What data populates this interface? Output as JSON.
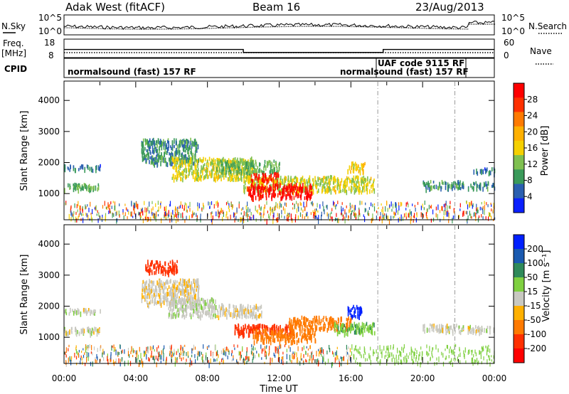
{
  "header": {
    "station": "Adak West (fitACF)",
    "beam": "Beam 16",
    "date": "23/Aug/2013"
  },
  "left_labels": {
    "nsky": "N.Sky",
    "freq": "Freq.",
    "freq_unit": "[MHz]",
    "cpid": "CPID"
  },
  "right_labels": {
    "nsearch": "N.Search",
    "nave": "Nave"
  },
  "panel_ticks": {
    "noise_left": [
      "10^5",
      "10^0"
    ],
    "noise_right": [
      "10^5",
      "10^0"
    ],
    "freq_left": [
      "18",
      "8"
    ],
    "freq_right": [
      "60",
      "0"
    ]
  },
  "cpid_segments": [
    {
      "label": "normalsound (fast) 157 RF",
      "start": 0,
      "end": 17.5
    },
    {
      "label": "UAF code 9115 RF",
      "start": 17.5,
      "end": 21.8
    },
    {
      "label": "normalsound (fast) 157 RF",
      "start": 17.5,
      "end": 24
    }
  ],
  "power_colorbar": {
    "label": "Power [dB]",
    "ticks": [
      "28",
      "24",
      "20",
      "16",
      "12",
      "8",
      "4"
    ],
    "colors": [
      "#ff0000",
      "#ff3000",
      "#ff7a00",
      "#ffb000",
      "#f5d000",
      "#7fc050",
      "#3a9a5a",
      "#2a5fb0",
      "#0a20ff"
    ]
  },
  "velocity_colorbar": {
    "label": "Velocity [m s⁻¹]",
    "ticks": [
      "200",
      "100",
      "50",
      "15",
      "-15",
      "-50",
      "-100",
      "-200"
    ],
    "colors": [
      "#0020ff",
      "#1a5ab0",
      "#2f8a5a",
      "#7fd040",
      "#c8c8c0",
      "#ffb000",
      "#ff7a00",
      "#ff3000",
      "#ff0000"
    ]
  },
  "axes": {
    "ylabel": "Slant Range [km]",
    "xlabel": "Time UT",
    "y_ticks": [
      "4000",
      "3000",
      "2000",
      "1000"
    ],
    "x_ticks": [
      "00:00",
      "04:00",
      "08:00",
      "12:00",
      "16:00",
      "20:00",
      "00:00"
    ]
  },
  "chart_data": [
    {
      "type": "heatmap",
      "title": "",
      "xlabel": "",
      "ylabel": "Slant Range [km]",
      "quantity": "Power [dB]",
      "xlim": [
        0,
        24
      ],
      "ylim": [
        180,
        4600
      ],
      "zlim": [
        0,
        30
      ],
      "regions": [
        {
          "t": [
            0.0,
            2.0
          ],
          "range": [
            1150,
            1350
          ],
          "value": 10
        },
        {
          "t": [
            0.0,
            2.0
          ],
          "range": [
            1800,
            1950
          ],
          "value": 6
        },
        {
          "t": [
            4.3,
            7.5
          ],
          "range": [
            2000,
            2800
          ],
          "value": 8
        },
        {
          "t": [
            6.0,
            10.5
          ],
          "range": [
            1500,
            2200
          ],
          "value": 14
        },
        {
          "t": [
            8.5,
            12.0
          ],
          "range": [
            1700,
            2100
          ],
          "value": 10
        },
        {
          "t": [
            10.0,
            17.3
          ],
          "range": [
            1100,
            1600
          ],
          "value": 14
        },
        {
          "t": [
            10.2,
            13.8
          ],
          "range": [
            900,
            1350
          ],
          "value": 28
        },
        {
          "t": [
            10.4,
            12.0
          ],
          "range": [
            1450,
            1700
          ],
          "value": 26
        },
        {
          "t": [
            15.8,
            16.8
          ],
          "range": [
            1750,
            2050
          ],
          "value": 16
        },
        {
          "t": [
            20.0,
            22.3
          ],
          "range": [
            1200,
            1450
          ],
          "value": 8
        },
        {
          "t": [
            22.5,
            24.0
          ],
          "range": [
            1200,
            1400
          ],
          "value": 8
        },
        {
          "t": [
            22.8,
            24.0
          ],
          "range": [
            1700,
            1850
          ],
          "value": 6
        }
      ]
    },
    {
      "type": "heatmap",
      "title": "",
      "xlabel": "Time UT",
      "ylabel": "Slant Range [km]",
      "quantity": "Velocity [m s⁻¹]",
      "xlim": [
        0,
        24
      ],
      "ylim": [
        180,
        4600
      ],
      "zlim": [
        -250,
        250
      ],
      "regions": [
        {
          "t": [
            0.0,
            2.0
          ],
          "range": [
            1150,
            1350
          ],
          "value": 0
        },
        {
          "t": [
            0.0,
            2.0
          ],
          "range": [
            1800,
            1950
          ],
          "value": 0
        },
        {
          "t": [
            4.3,
            7.5
          ],
          "range": [
            2100,
            2900
          ],
          "value": -5
        },
        {
          "t": [
            5.8,
            8.5
          ],
          "range": [
            1700,
            2300
          ],
          "value": 5
        },
        {
          "t": [
            8.5,
            11.0
          ],
          "range": [
            1700,
            2100
          ],
          "value": -5
        },
        {
          "t": [
            9.5,
            12.8
          ],
          "range": [
            1100,
            1450
          ],
          "value": -150
        },
        {
          "t": [
            10.5,
            14.0
          ],
          "range": [
            900,
            1300
          ],
          "value": -70
        },
        {
          "t": [
            12.5,
            16.0
          ],
          "range": [
            1300,
            1700
          ],
          "value": -80
        },
        {
          "t": [
            15.0,
            17.3
          ],
          "range": [
            1150,
            1500
          ],
          "value": 40
        },
        {
          "t": [
            15.8,
            16.6
          ],
          "range": [
            1700,
            2050
          ],
          "value": 220
        },
        {
          "t": [
            4.5,
            6.3
          ],
          "range": [
            3100,
            3500
          ],
          "value": -150
        },
        {
          "t": [
            20.0,
            22.3
          ],
          "range": [
            1200,
            1450
          ],
          "value": 0
        },
        {
          "t": [
            22.5,
            24.0
          ],
          "range": [
            1200,
            1400
          ],
          "value": 0
        }
      ]
    }
  ]
}
